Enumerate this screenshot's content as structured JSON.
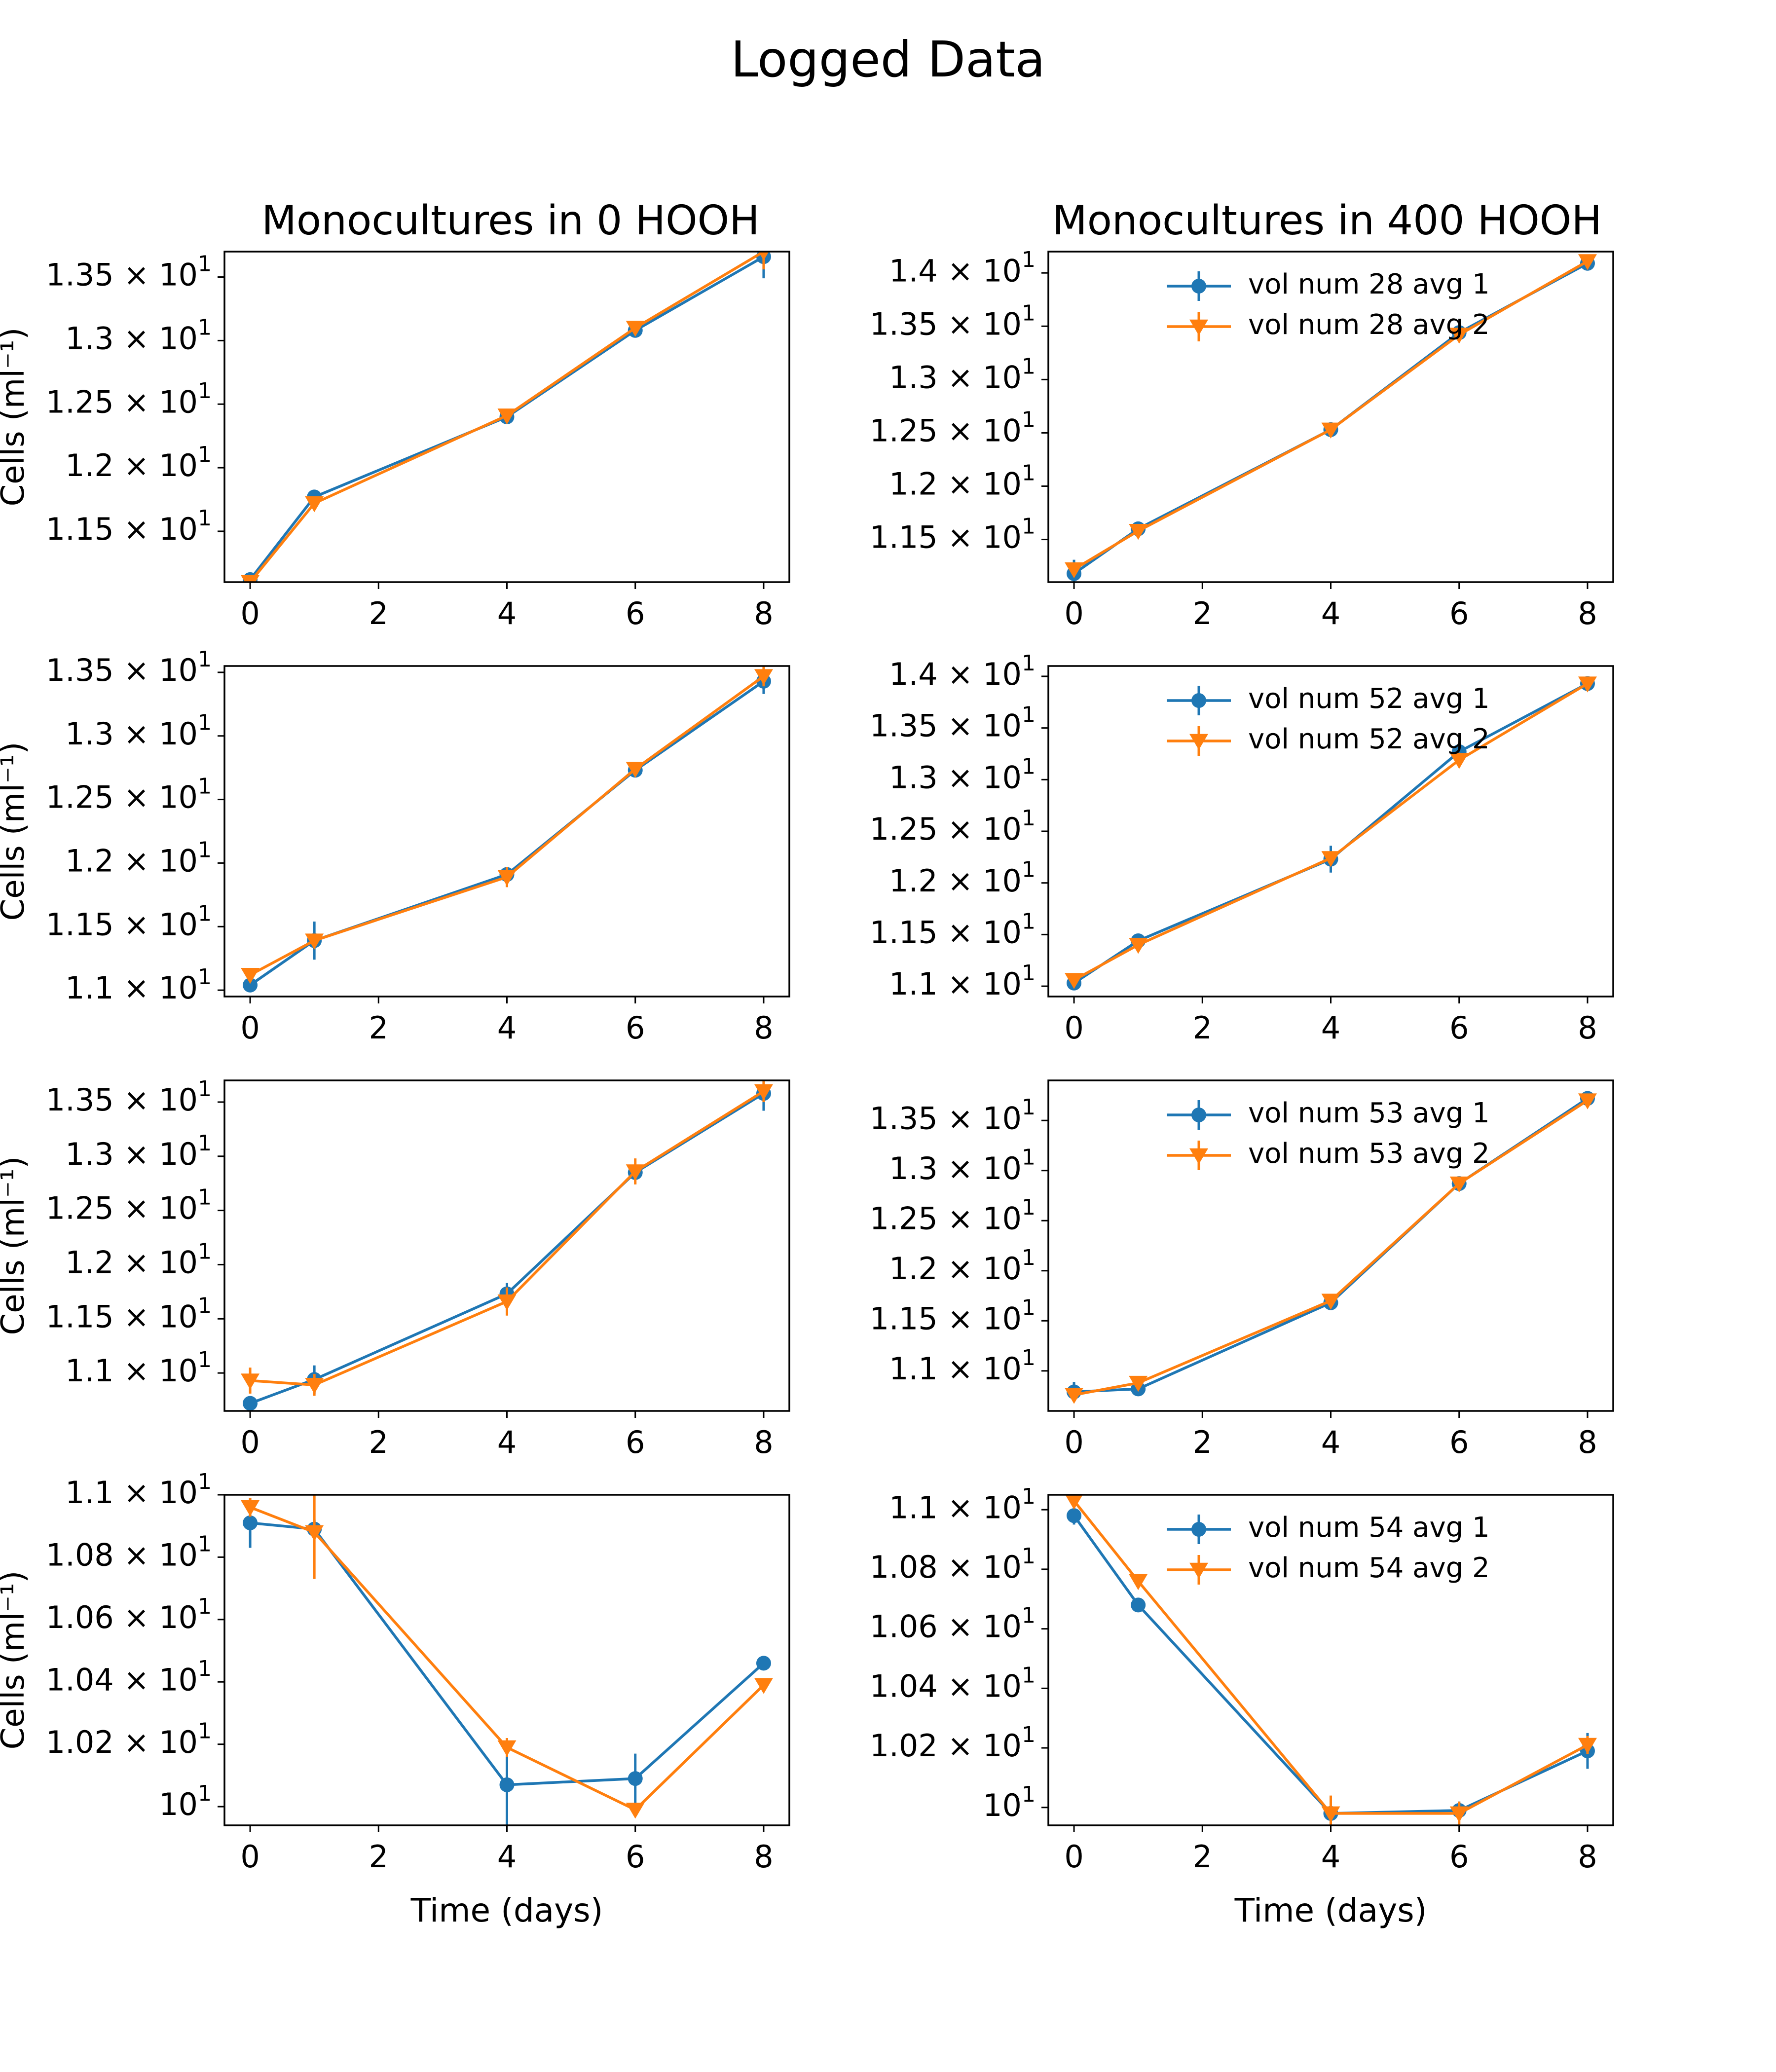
{
  "figure": {
    "title": "Logged Data"
  },
  "colors": {
    "series1": "#1f77b4",
    "series2": "#ff7f0e"
  },
  "column_titles": [
    "Monocultures in 0 HOOH",
    "Monocultures in 400 HOOH"
  ],
  "xlabel": "Time (days)",
  "ylabel": "Cells (ml⁻¹)",
  "chart_data": [
    {
      "type": "line",
      "row": 0,
      "col": 0,
      "title": "Monocultures in 0 HOOH",
      "xlabel": "",
      "ylabel": "Cells (ml⁻¹)",
      "x": [
        0,
        1,
        4,
        6,
        8
      ],
      "xlim": [
        -0.4,
        8.4
      ],
      "xticks": [
        0,
        2,
        4,
        6,
        8
      ],
      "ylim": [
        11.1,
        13.7
      ],
      "yticks": [
        11.5,
        12.0,
        12.5,
        13.0,
        13.5
      ],
      "ytick_labels": [
        "1.15 × 10^1",
        "1.2 × 10^1",
        "1.25 × 10^1",
        "1.3 × 10^1",
        "1.35 × 10^1"
      ],
      "legend": false,
      "series": [
        {
          "marker": "circle",
          "values": [
            11.12,
            11.77,
            12.4,
            13.08,
            13.66
          ],
          "errors": [
            0.02,
            0.03,
            0.03,
            0.04,
            0.17
          ]
        },
        {
          "marker": "triangle-down",
          "values": [
            11.1,
            11.72,
            12.41,
            13.1,
            13.7
          ],
          "errors": [
            0.02,
            0.03,
            0.04,
            0.04,
            0.14
          ]
        }
      ]
    },
    {
      "type": "line",
      "row": 0,
      "col": 1,
      "title": "Monocultures in 400 HOOH",
      "xlabel": "",
      "ylabel": "",
      "x": [
        0,
        1,
        4,
        6,
        8
      ],
      "xlim": [
        -0.4,
        8.4
      ],
      "xticks": [
        0,
        2,
        4,
        6,
        8
      ],
      "ylim": [
        11.1,
        14.2
      ],
      "yticks": [
        11.5,
        12.0,
        12.5,
        13.0,
        13.5,
        14.0
      ],
      "ytick_labels": [
        "1.15 × 10^1",
        "1.2 × 10^1",
        "1.25 × 10^1",
        "1.3 × 10^1",
        "1.35 × 10^1",
        "1.4 × 10^1"
      ],
      "legend": true,
      "series": [
        {
          "name": "vol num 28 avg 1",
          "marker": "circle",
          "values": [
            11.18,
            11.6,
            12.53,
            13.44,
            14.09
          ],
          "errors": [
            0.13,
            0.04,
            0.04,
            0.04,
            0.04
          ]
        },
        {
          "name": "vol num 28 avg 2",
          "marker": "triangle-down",
          "values": [
            11.22,
            11.58,
            12.53,
            13.42,
            14.11
          ],
          "errors": [
            0.05,
            0.04,
            0.05,
            0.04,
            0.04
          ]
        }
      ]
    },
    {
      "type": "line",
      "row": 1,
      "col": 0,
      "title": "",
      "xlabel": "",
      "ylabel": "Cells (ml⁻¹)",
      "x": [
        0,
        1,
        4,
        6,
        8
      ],
      "xlim": [
        -0.4,
        8.4
      ],
      "xticks": [
        0,
        2,
        4,
        6,
        8
      ],
      "ylim": [
        10.95,
        13.55
      ],
      "yticks": [
        11.0,
        11.5,
        12.0,
        12.5,
        13.0,
        13.5
      ],
      "ytick_labels": [
        "1.1 × 10^1",
        "1.15 × 10^1",
        "1.2 × 10^1",
        "1.25 × 10^1",
        "1.3 × 10^1",
        "1.35 × 10^1"
      ],
      "legend": false,
      "series": [
        {
          "marker": "circle",
          "values": [
            11.04,
            11.39,
            11.91,
            12.73,
            13.43
          ],
          "errors": [
            0.02,
            0.15,
            0.05,
            0.04,
            0.1
          ]
        },
        {
          "marker": "triangle-down",
          "values": [
            11.12,
            11.39,
            11.89,
            12.74,
            13.47
          ],
          "errors": [
            0.03,
            0.04,
            0.08,
            0.04,
            0.08
          ]
        }
      ]
    },
    {
      "type": "line",
      "row": 1,
      "col": 1,
      "title": "",
      "xlabel": "",
      "ylabel": "",
      "x": [
        0,
        1,
        4,
        6,
        8
      ],
      "xlim": [
        -0.4,
        8.4
      ],
      "xticks": [
        0,
        2,
        4,
        6,
        8
      ],
      "ylim": [
        10.9,
        14.1
      ],
      "yticks": [
        11.0,
        11.5,
        12.0,
        12.5,
        13.0,
        13.5,
        14.0
      ],
      "ytick_labels": [
        "1.1 × 10^1",
        "1.15 × 10^1",
        "1.2 × 10^1",
        "1.25 × 10^1",
        "1.3 × 10^1",
        "1.35 × 10^1",
        "1.4 × 10^1"
      ],
      "legend": true,
      "series": [
        {
          "name": "vol num 52 avg 1",
          "marker": "circle",
          "values": [
            11.03,
            11.44,
            12.23,
            13.27,
            13.93
          ],
          "errors": [
            0.02,
            0.04,
            0.13,
            0.04,
            0.03
          ]
        },
        {
          "name": "vol num 52 avg 2",
          "marker": "triangle-down",
          "values": [
            11.06,
            11.4,
            12.24,
            13.19,
            13.93
          ],
          "errors": [
            0.03,
            0.05,
            0.06,
            0.07,
            0.04
          ]
        }
      ]
    },
    {
      "type": "line",
      "row": 2,
      "col": 0,
      "title": "",
      "xlabel": "",
      "ylabel": "Cells (ml⁻¹)",
      "x": [
        0,
        1,
        4,
        6,
        8
      ],
      "xlim": [
        -0.4,
        8.4
      ],
      "xticks": [
        0,
        2,
        4,
        6,
        8
      ],
      "ylim": [
        10.65,
        13.7
      ],
      "yticks": [
        11.0,
        11.5,
        12.0,
        12.5,
        13.0,
        13.5
      ],
      "ytick_labels": [
        "1.1 × 10^1",
        "1.15 × 10^1",
        "1.2 × 10^1",
        "1.25 × 10^1",
        "1.3 × 10^1",
        "1.35 × 10^1"
      ],
      "legend": false,
      "series": [
        {
          "marker": "circle",
          "values": [
            10.72,
            10.94,
            11.73,
            12.85,
            13.58
          ],
          "errors": [
            0.02,
            0.13,
            0.1,
            0.06,
            0.16
          ]
        },
        {
          "marker": "triangle-down",
          "values": [
            10.93,
            10.89,
            11.66,
            12.86,
            13.6
          ],
          "errors": [
            0.12,
            0.1,
            0.13,
            0.12,
            0.1
          ]
        }
      ]
    },
    {
      "type": "line",
      "row": 2,
      "col": 1,
      "title": "",
      "xlabel": "",
      "ylabel": "",
      "x": [
        0,
        1,
        4,
        6,
        8
      ],
      "xlim": [
        -0.4,
        8.4
      ],
      "xticks": [
        0,
        2,
        4,
        6,
        8
      ],
      "ylim": [
        10.6,
        13.9
      ],
      "yticks": [
        11.0,
        11.5,
        12.0,
        12.5,
        13.0,
        13.5
      ],
      "ytick_labels": [
        "1.1 × 10^1",
        "1.15 × 10^1",
        "1.2 × 10^1",
        "1.25 × 10^1",
        "1.3 × 10^1",
        "1.35 × 10^1"
      ],
      "legend": true,
      "series": [
        {
          "name": "vol num 53 avg 1",
          "marker": "circle",
          "values": [
            10.79,
            10.82,
            11.68,
            12.87,
            13.72
          ],
          "errors": [
            0.1,
            0.04,
            0.04,
            0.04,
            0.04
          ]
        },
        {
          "name": "vol num 53 avg 2",
          "marker": "triangle-down",
          "values": [
            10.76,
            10.88,
            11.7,
            12.87,
            13.7
          ],
          "errors": [
            0.04,
            0.04,
            0.04,
            0.04,
            0.04
          ]
        }
      ]
    },
    {
      "type": "line",
      "row": 3,
      "col": 0,
      "title": "",
      "xlabel": "Time (days)",
      "ylabel": "Cells (ml⁻¹)",
      "x": [
        0,
        1,
        4,
        6,
        8
      ],
      "xlim": [
        -0.4,
        8.4
      ],
      "xticks": [
        0,
        2,
        4,
        6,
        8
      ],
      "ylim": [
        9.94,
        11.0
      ],
      "yticks": [
        10.0,
        10.2,
        10.4,
        10.6,
        10.8,
        11.0
      ],
      "ytick_labels": [
        "10^1",
        "1.02 × 10^1",
        "1.04 × 10^1",
        "1.06 × 10^1",
        "1.08 × 10^1",
        "1.1 × 10^1"
      ],
      "legend": false,
      "series": [
        {
          "marker": "circle",
          "values": [
            10.91,
            10.89,
            10.07,
            10.09,
            10.46
          ],
          "errors": [
            0.08,
            0.03,
            0.14,
            0.08,
            0.02
          ]
        },
        {
          "marker": "triangle-down",
          "values": [
            10.96,
            10.88,
            10.19,
            9.99,
            10.39
          ],
          "errors": [
            0.03,
            0.15,
            0.03,
            0.02,
            0.02
          ]
        }
      ]
    },
    {
      "type": "line",
      "row": 3,
      "col": 1,
      "title": "",
      "xlabel": "Time (days)",
      "ylabel": "",
      "x": [
        0,
        1,
        4,
        6,
        8
      ],
      "xlim": [
        -0.4,
        8.4
      ],
      "xticks": [
        0,
        2,
        4,
        6,
        8
      ],
      "ylim": [
        9.94,
        11.05
      ],
      "yticks": [
        10.0,
        10.2,
        10.4,
        10.6,
        10.8,
        11.0
      ],
      "ytick_labels": [
        "10^1",
        "1.02 × 10^1",
        "1.04 × 10^1",
        "1.06 × 10^1",
        "1.08 × 10^1",
        "1.1 × 10^1"
      ],
      "legend": true,
      "series": [
        {
          "name": "vol num 54 avg 1",
          "marker": "circle",
          "values": [
            10.98,
            10.68,
            9.98,
            9.99,
            10.19
          ],
          "errors": [
            0.03,
            0.02,
            0.03,
            0.03,
            0.06
          ]
        },
        {
          "name": "vol num 54 avg 2",
          "marker": "triangle-down",
          "values": [
            11.03,
            10.76,
            9.98,
            9.98,
            10.21
          ],
          "errors": [
            0.02,
            0.02,
            0.06,
            0.04,
            0.03
          ]
        }
      ]
    }
  ]
}
